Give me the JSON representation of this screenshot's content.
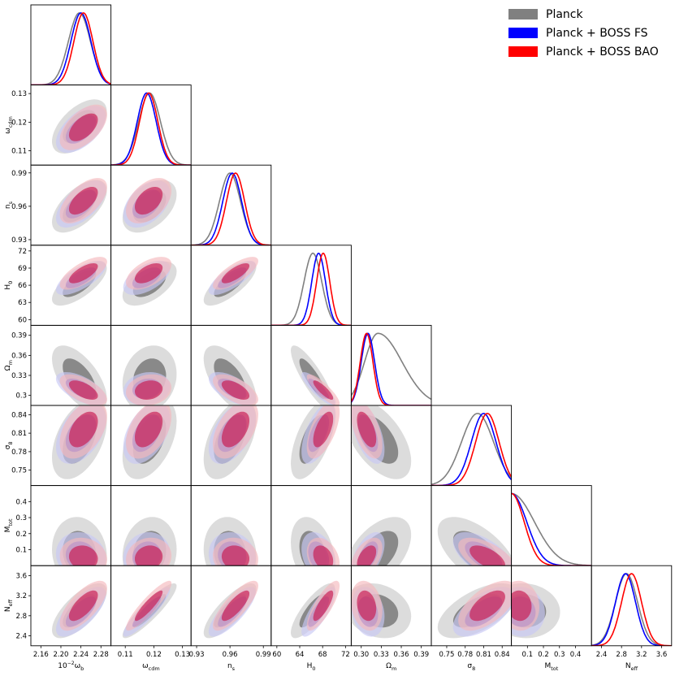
{
  "chart_data": {
    "type": "triangle-plot",
    "title": "",
    "parameters": [
      {
        "key": "omega_b",
        "label": "10^{-2}ω_b",
        "range": [
          2.14,
          2.3
        ],
        "ticks": [
          2.16,
          2.2,
          2.24,
          2.28
        ],
        "tick_labels": [
          "2.16",
          "2.20",
          "2.24",
          "2.28"
        ]
      },
      {
        "key": "omega_cdm",
        "label": "ω_cdm",
        "range": [
          0.105,
          0.133
        ],
        "ticks": [
          0.11,
          0.12,
          0.13
        ],
        "tick_labels": [
          "0.11",
          "0.12",
          "0.13"
        ]
      },
      {
        "key": "n_s",
        "label": "n_s",
        "range": [
          0.925,
          0.997
        ],
        "ticks": [
          0.93,
          0.96,
          0.99
        ],
        "tick_labels": [
          "0.93",
          "0.96",
          "0.99"
        ]
      },
      {
        "key": "H0",
        "label": "H_0",
        "range": [
          59,
          73
        ],
        "ticks": [
          60,
          63,
          66,
          69,
          72
        ],
        "tick_labels": [
          "60",
          "63",
          "66",
          "69",
          "72"
        ],
        "x_tick_labels": [
          "60",
          "64",
          "68",
          "72"
        ],
        "x_ticks": [
          60,
          64,
          68,
          72
        ]
      },
      {
        "key": "Omega_m",
        "label": "Ω_m",
        "range": [
          0.285,
          0.405
        ],
        "ticks": [
          0.3,
          0.33,
          0.36,
          0.39
        ],
        "tick_labels": [
          "0.3",
          "0.33",
          "0.36",
          "0.39"
        ],
        "x_tick_labels": [
          "0.30",
          "0.33",
          "0.36",
          "0.39"
        ]
      },
      {
        "key": "sigma8",
        "label": "σ_8",
        "range": [
          0.725,
          0.855
        ],
        "ticks": [
          0.75,
          0.78,
          0.81,
          0.84
        ],
        "tick_labels": [
          "0.75",
          "0.78",
          "0.81",
          "0.84"
        ]
      },
      {
        "key": "M_tot",
        "label": "M_tot",
        "range": [
          0,
          0.5
        ],
        "ticks": [
          0.1,
          0.2,
          0.3,
          0.4
        ],
        "tick_labels": [
          "0.1",
          "0.2",
          "0.3",
          "0.4"
        ],
        "x_ticks": [
          0.1,
          0.2,
          0.3,
          0.4
        ],
        "x_tick_labels": [
          "0.1",
          "0.2",
          "0.3",
          "0.4"
        ]
      },
      {
        "key": "N_eff",
        "label": "N_eff",
        "range": [
          2.2,
          3.8
        ],
        "ticks": [
          2.4,
          2.8,
          3.2,
          3.6
        ],
        "tick_labels": [
          "2.4",
          "2.8",
          "3.2",
          "3.6"
        ]
      }
    ],
    "series": [
      {
        "name": "Planck",
        "color": "#808080",
        "mean": [
          2.237,
          0.1185,
          0.96,
          66.3,
          0.325,
          0.8,
          0.08,
          2.9
        ],
        "sigma": [
          0.022,
          0.0038,
          0.0095,
          1.55,
          0.02,
          0.026,
          0.09,
          0.22
        ]
      },
      {
        "name": "Planck + BOSS FS",
        "color": "#0000ff",
        "mean": [
          2.24,
          0.1175,
          0.962,
          67.3,
          0.31,
          0.81,
          0.06,
          2.88
        ],
        "sigma": [
          0.02,
          0.0033,
          0.0085,
          1.2,
          0.01,
          0.02,
          0.06,
          0.2
        ]
      },
      {
        "name": "Planck + BOSS BAO",
        "color": "#ff0000",
        "mean": [
          2.245,
          0.1182,
          0.965,
          68.1,
          0.308,
          0.816,
          0.05,
          3.0
        ],
        "sigma": [
          0.019,
          0.0032,
          0.0082,
          1.15,
          0.0095,
          0.019,
          0.05,
          0.2
        ]
      }
    ],
    "correlations": {
      "1-0": 0.55,
      "2-0": 0.6,
      "2-1": 0.45,
      "3-0": 0.7,
      "3-1": 0.55,
      "3-2": 0.75,
      "4-0": -0.6,
      "4-1": 0.15,
      "4-2": -0.6,
      "4-3": -0.85,
      "5-0": 0.45,
      "5-1": 0.45,
      "5-2": 0.5,
      "5-3": 0.6,
      "5-4": -0.55,
      "6-0": -0.1,
      "6-1": 0.1,
      "6-2": -0.1,
      "6-3": -0.3,
      "6-4": 0.5,
      "6-5": -0.6,
      "7-0": 0.7,
      "7-1": 0.9,
      "7-2": 0.8,
      "7-3": 0.8,
      "7-4": -0.2,
      "7-5": 0.6,
      "7-6": -0.05
    },
    "legend_position": "top-right"
  },
  "legend": [
    {
      "label": "Planck",
      "color": "#808080"
    },
    {
      "label": "Planck + BOSS FS",
      "color": "#0000ff"
    },
    {
      "label": "Planck + BOSS BAO",
      "color": "#ff0000"
    }
  ]
}
